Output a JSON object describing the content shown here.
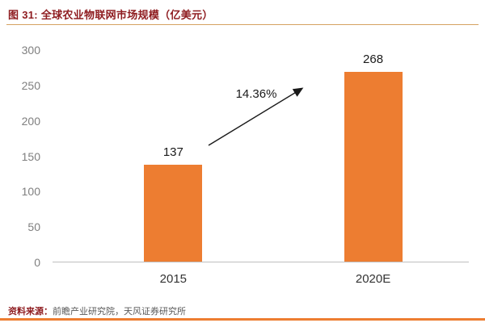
{
  "header": {
    "title": "图 31: 全球农业物联网市场规模（亿美元）"
  },
  "chart_data": {
    "type": "bar",
    "title": "全球农业物联网市场规模（亿美元）",
    "categories": [
      "2015",
      "2020E"
    ],
    "values": [
      137,
      268
    ],
    "annotation": "14.36%",
    "xlabel": "",
    "ylabel": "",
    "ylim": [
      0,
      300
    ],
    "ytick_step": 50,
    "yticks": [
      0,
      50,
      100,
      150,
      200,
      250,
      300
    ],
    "grid": false,
    "legend": false,
    "bar_color": "#ED7D31",
    "bar_centers_frac": [
      0.29,
      0.77
    ]
  },
  "footer": {
    "source_label": "资料来源：",
    "source_text": "前瞻产业研究院，天风证券研究所"
  },
  "colors": {
    "accent_orange": "#ED7D31",
    "title_red": "#8E1B1F",
    "axis_gray": "#7F7F7F"
  }
}
